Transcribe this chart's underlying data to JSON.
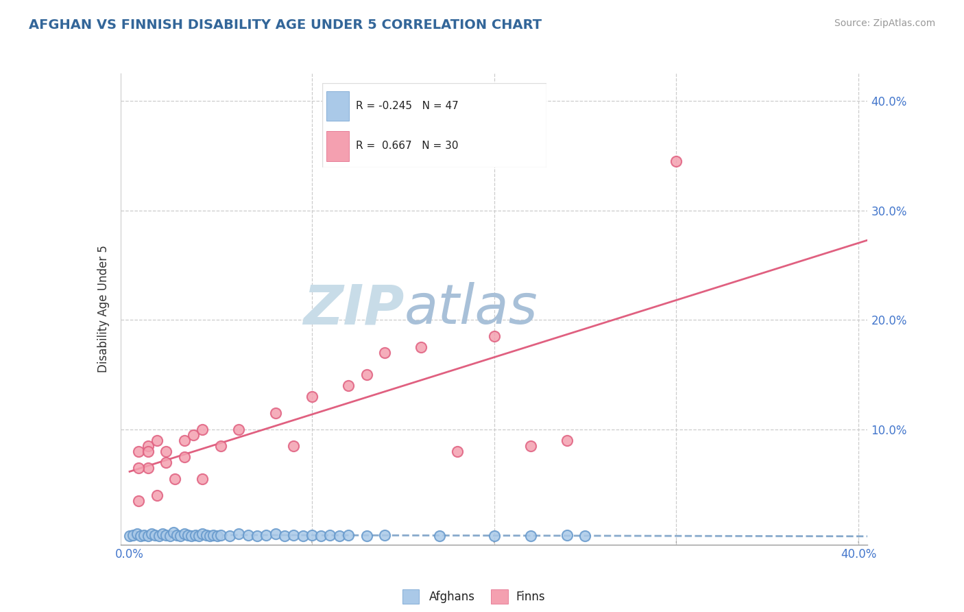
{
  "title": "AFGHAN VS FINNISH DISABILITY AGE UNDER 5 CORRELATION CHART",
  "source": "Source: ZipAtlas.com",
  "ylabel": "Disability Age Under 5",
  "xlim": [
    -0.005,
    0.405
  ],
  "ylim": [
    -0.005,
    0.425
  ],
  "x_ticks": [
    0.0,
    0.1,
    0.2,
    0.3,
    0.4
  ],
  "y_ticks": [
    0.0,
    0.1,
    0.2,
    0.3,
    0.4
  ],
  "x_tick_labels": [
    "0.0%",
    "",
    "",
    "",
    "40.0%"
  ],
  "y_tick_labels_right": [
    "",
    "10.0%",
    "20.0%",
    "30.0%",
    "40.0%"
  ],
  "afghan_R": -0.245,
  "afghan_N": 47,
  "finn_R": 0.667,
  "finn_N": 30,
  "afghan_color": "#aac9e8",
  "afghan_edge_color": "#6699cc",
  "finn_color": "#f4a0b0",
  "finn_edge_color": "#e06080",
  "afghan_line_color": "#88aacc",
  "finn_line_color": "#e06080",
  "watermark_zip_color": "#c8dce8",
  "watermark_atlas_color": "#a8c0d8",
  "background_color": "#ffffff",
  "grid_color": "#cccccc",
  "title_color": "#336699",
  "source_color": "#999999",
  "tick_color": "#4477cc",
  "finn_points_x": [
    0.005,
    0.01,
    0.015,
    0.02,
    0.025,
    0.03,
    0.04,
    0.005,
    0.01,
    0.015,
    0.02,
    0.03,
    0.035,
    0.04,
    0.05,
    0.06,
    0.08,
    0.09,
    0.1,
    0.12,
    0.13,
    0.14,
    0.16,
    0.18,
    0.2,
    0.22,
    0.24,
    0.3,
    0.005,
    0.01
  ],
  "finn_points_y": [
    0.035,
    0.065,
    0.04,
    0.07,
    0.055,
    0.075,
    0.055,
    0.08,
    0.085,
    0.09,
    0.08,
    0.09,
    0.095,
    0.1,
    0.085,
    0.1,
    0.115,
    0.085,
    0.13,
    0.14,
    0.15,
    0.17,
    0.175,
    0.08,
    0.185,
    0.085,
    0.09,
    0.345,
    0.065,
    0.08
  ],
  "afghan_points_x": [
    0.0,
    0.002,
    0.004,
    0.006,
    0.008,
    0.01,
    0.012,
    0.014,
    0.016,
    0.018,
    0.02,
    0.022,
    0.024,
    0.026,
    0.028,
    0.03,
    0.032,
    0.034,
    0.036,
    0.038,
    0.04,
    0.042,
    0.044,
    0.046,
    0.048,
    0.05,
    0.055,
    0.06,
    0.065,
    0.07,
    0.075,
    0.08,
    0.085,
    0.09,
    0.095,
    0.1,
    0.105,
    0.11,
    0.115,
    0.12,
    0.13,
    0.14,
    0.17,
    0.2,
    0.22,
    0.24,
    0.25
  ],
  "afghan_points_y": [
    0.003,
    0.004,
    0.005,
    0.003,
    0.004,
    0.003,
    0.005,
    0.004,
    0.003,
    0.005,
    0.004,
    0.003,
    0.006,
    0.004,
    0.003,
    0.005,
    0.004,
    0.003,
    0.004,
    0.003,
    0.005,
    0.004,
    0.003,
    0.004,
    0.003,
    0.004,
    0.003,
    0.005,
    0.004,
    0.003,
    0.004,
    0.005,
    0.003,
    0.004,
    0.003,
    0.004,
    0.003,
    0.004,
    0.003,
    0.004,
    0.003,
    0.004,
    0.003,
    0.003,
    0.003,
    0.004,
    0.003
  ]
}
